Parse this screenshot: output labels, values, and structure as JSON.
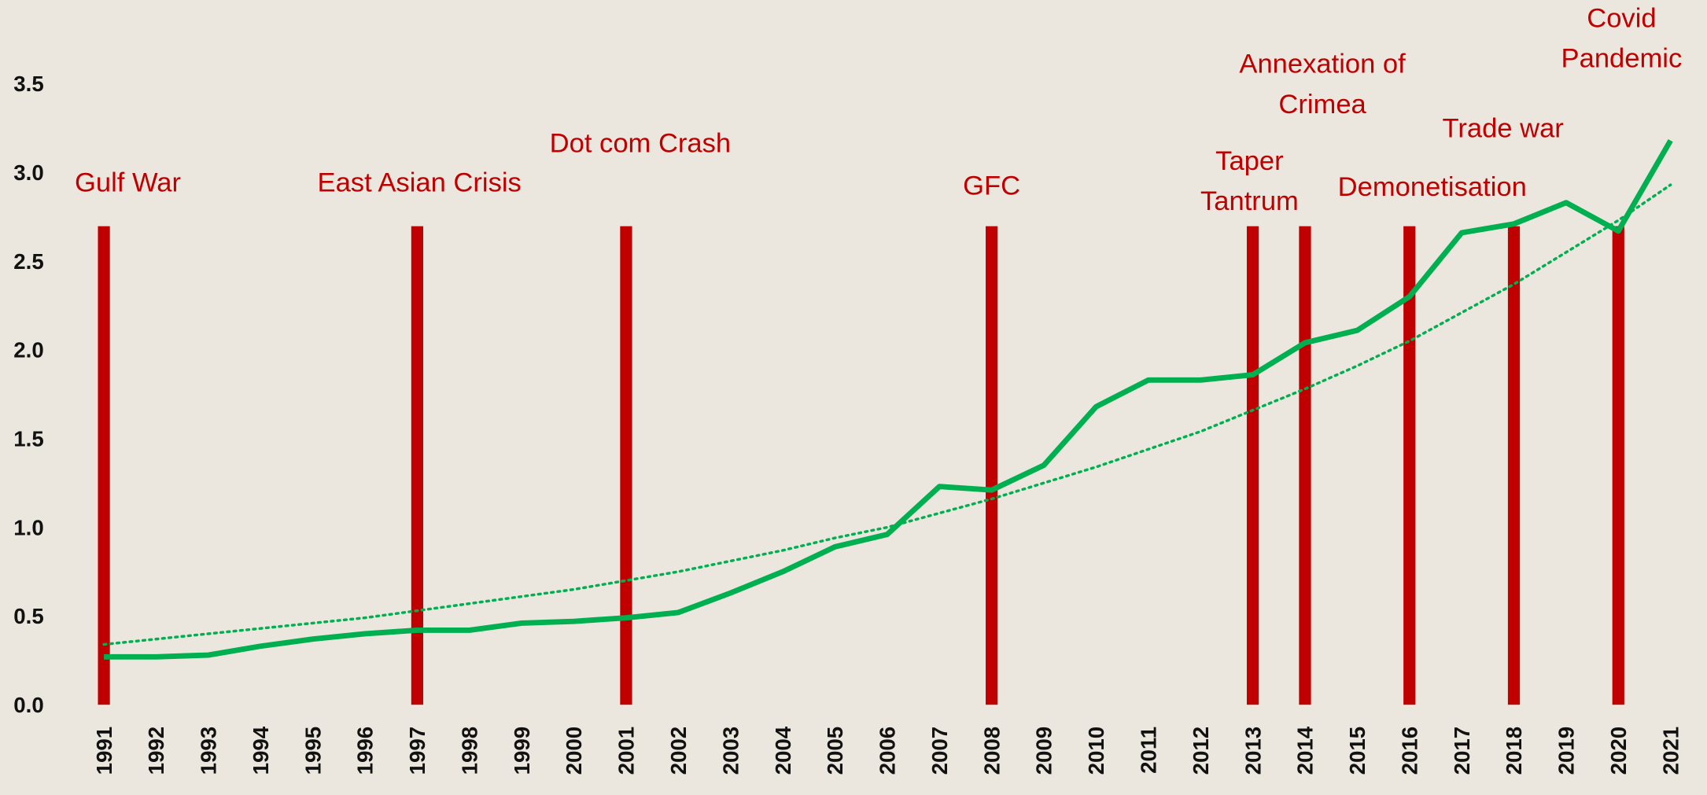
{
  "chart_data": {
    "type": "line",
    "categories": [
      "1991",
      "1992",
      "1993",
      "1994",
      "1995",
      "1996",
      "1997",
      "1998",
      "1999",
      "2000",
      "2001",
      "2002",
      "2003",
      "2004",
      "2005",
      "2006",
      "2007",
      "2008",
      "2009",
      "2010",
      "2011",
      "2012",
      "2013",
      "2014",
      "2015",
      "2016",
      "2017",
      "2018",
      "2019",
      "2020",
      "2021"
    ],
    "series": [
      {
        "color": "#00b050",
        "style": "solid",
        "values": [
          0.27,
          0.27,
          0.28,
          0.33,
          0.37,
          0.4,
          0.42,
          0.42,
          0.46,
          0.47,
          0.49,
          0.52,
          0.63,
          0.75,
          0.89,
          0.96,
          1.23,
          1.21,
          1.35,
          1.68,
          1.83,
          1.83,
          1.86,
          2.04,
          2.11,
          2.3,
          2.66,
          2.71,
          2.83,
          2.67,
          3.18
        ]
      },
      {
        "color": "#00b050",
        "style": "dotted",
        "values": [
          0.34,
          0.37,
          0.4,
          0.43,
          0.46,
          0.49,
          0.53,
          0.57,
          0.61,
          0.65,
          0.7,
          0.75,
          0.81,
          0.87,
          0.94,
          1.0,
          1.08,
          1.16,
          1.25,
          1.34,
          1.44,
          1.54,
          1.66,
          1.78,
          1.91,
          2.05,
          2.21,
          2.37,
          2.55,
          2.73,
          2.93
        ]
      }
    ],
    "ylim": [
      0,
      3.5
    ],
    "yticks": [
      {
        "value": 0,
        "label": "0.0"
      },
      {
        "value": 0.5,
        "label": "0.5"
      },
      {
        "value": 1,
        "label": "1.0"
      },
      {
        "value": 1.5,
        "label": "1.5"
      },
      {
        "value": 2,
        "label": "2.0"
      },
      {
        "value": 2.5,
        "label": "2.5"
      },
      {
        "value": 3,
        "label": "3.0"
      },
      {
        "value": 3.5,
        "label": "3.5"
      }
    ],
    "annotation_color": "#c00000",
    "annotations": [
      {
        "category": "1991",
        "text": [
          "Gulf War"
        ]
      },
      {
        "category": "1997",
        "text": [
          "East Asian Crisis"
        ]
      },
      {
        "category": "2001",
        "text": [
          "Dot com Crash"
        ]
      },
      {
        "category": "2008",
        "text": [
          "GFC"
        ]
      },
      {
        "category": "2013",
        "text": [
          "Taper",
          "Tantrum"
        ]
      },
      {
        "category": "2014",
        "text": [
          "Annexation of",
          "Crimea"
        ]
      },
      {
        "category": "2016",
        "text": [
          "Demonetisation"
        ]
      },
      {
        "category": "2018",
        "text": [
          "Trade war"
        ]
      },
      {
        "category": "2020",
        "text": [
          "Covid",
          "Pandemic"
        ]
      }
    ]
  }
}
